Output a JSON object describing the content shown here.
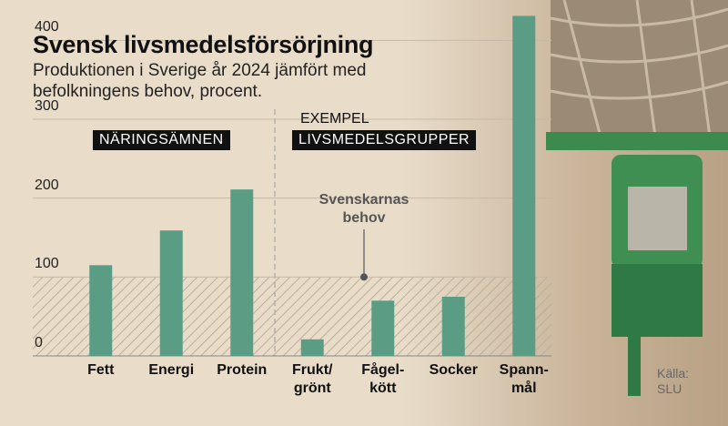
{
  "chart_data": {
    "type": "bar",
    "title": "Svensk livsmedelsförsörjning",
    "subtitle": "Produktionen i Sverige år 2024 jämfört med befolkningens behov, procent.",
    "categories": [
      "Fett",
      "Energi",
      "Protein",
      "Frukt/\ngrönt",
      "Fågel-\nkött",
      "Socker",
      "Spann-\nmål"
    ],
    "values": [
      115,
      159,
      211,
      21,
      70,
      75,
      431
    ],
    "color": "#5a9c84",
    "ylim": [
      0,
      450
    ],
    "yticks": [
      0,
      100,
      200,
      300,
      400
    ],
    "need": 100,
    "groups": [
      "NÄRINGSÄMNEN",
      "LIVSMEDELSGRUPPER"
    ],
    "group_note": "EXEMPEL",
    "annotation": "Svenskarnas behov",
    "source": "Källa:\nSLU"
  }
}
